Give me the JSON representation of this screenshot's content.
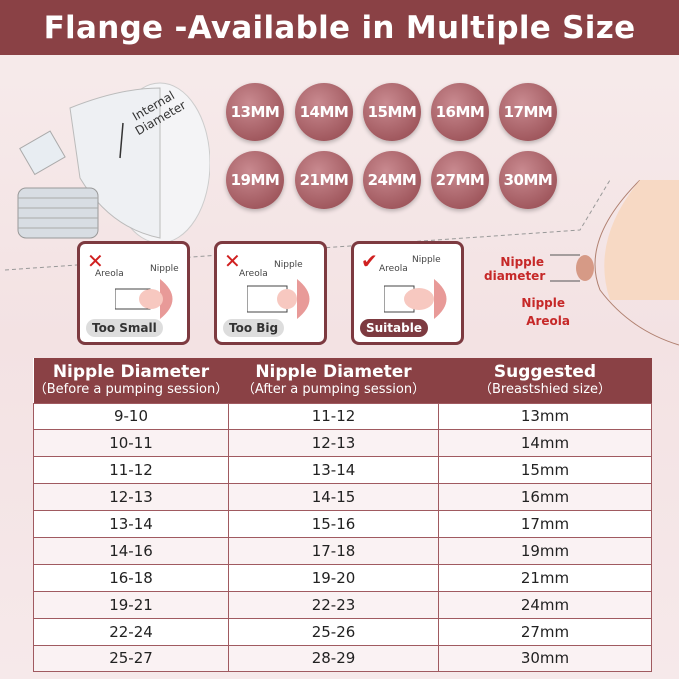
{
  "title": "Flange -Available in Multiple Size",
  "flange_label": "Internal Diameter",
  "sizes": [
    "13MM",
    "14MM",
    "15MM",
    "16MM",
    "17MM",
    "19MM",
    "21MM",
    "24MM",
    "27MM",
    "30MM"
  ],
  "fit_cards": [
    {
      "status": "x",
      "areola": "Areola",
      "nipple": "Nipple",
      "label": "Too Small"
    },
    {
      "status": "x",
      "areola": "Areola",
      "nipple": "Nipple",
      "label": "Too Big"
    },
    {
      "status": "check",
      "areola": "Areola",
      "nipple": "Nipple",
      "label": "Suitable"
    }
  ],
  "anatomy": {
    "diameter": "Nipple diameter",
    "nipple": "Nipple",
    "areola": "Areola"
  },
  "table": {
    "headers": [
      {
        "title": "Nipple Diameter",
        "sub": "（Before a pumping session）"
      },
      {
        "title": "Nipple Diameter",
        "sub": "（After a pumping session）"
      },
      {
        "title": "Suggested",
        "sub": "（Breastshied size）"
      }
    ],
    "rows": [
      [
        "9-10",
        "11-12",
        "13mm"
      ],
      [
        "10-11",
        "12-13",
        "14mm"
      ],
      [
        "11-12",
        "13-14",
        "15mm"
      ],
      [
        "12-13",
        "14-15",
        "16mm"
      ],
      [
        "13-14",
        "15-16",
        "17mm"
      ],
      [
        "14-16",
        "17-18",
        "19mm"
      ],
      [
        "16-18",
        "19-20",
        "21mm"
      ],
      [
        "19-21",
        "22-23",
        "24mm"
      ],
      [
        "22-24",
        "25-26",
        "27mm"
      ],
      [
        "25-27",
        "28-29",
        "30mm"
      ]
    ]
  },
  "colors": {
    "brand": "#8a4145",
    "alert": "#c62828"
  }
}
